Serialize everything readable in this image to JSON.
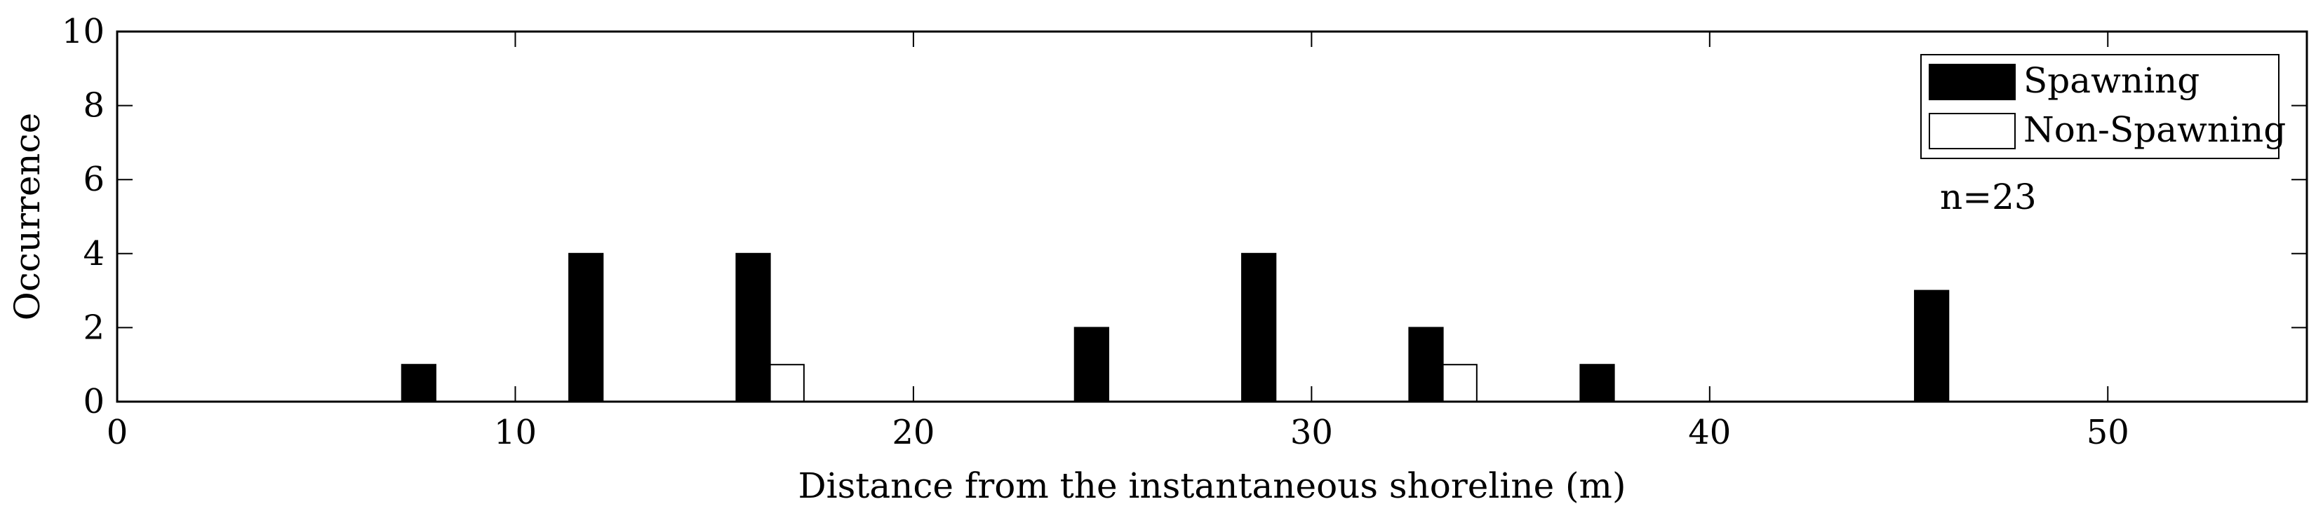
{
  "chart_data": {
    "type": "bar",
    "xlabel": "Distance from the instantaneous shoreline (m)",
    "ylabel": "Occurrence",
    "xlim": [
      0,
      55
    ],
    "ylim": [
      0,
      10
    ],
    "xticks": [
      0,
      10,
      20,
      30,
      40,
      50
    ],
    "yticks": [
      0,
      2,
      4,
      6,
      8,
      10
    ],
    "bin_centers": [
      8,
      12.2,
      16.4,
      20.7,
      24.9,
      29.1,
      33.3,
      37.6,
      41.8,
      46
    ],
    "bin_width": 1.7,
    "grid": false,
    "legend_position": "top-right",
    "series": [
      {
        "name": "Spawning",
        "color": "#000000",
        "values": [
          1,
          4,
          4,
          0,
          2,
          4,
          2,
          1,
          0,
          3
        ]
      },
      {
        "name": "Non-Spawning",
        "color": "#ffffff",
        "values": [
          0,
          0,
          1,
          0,
          0,
          0,
          1,
          0,
          0,
          0
        ]
      }
    ],
    "annotation": "n=23"
  }
}
